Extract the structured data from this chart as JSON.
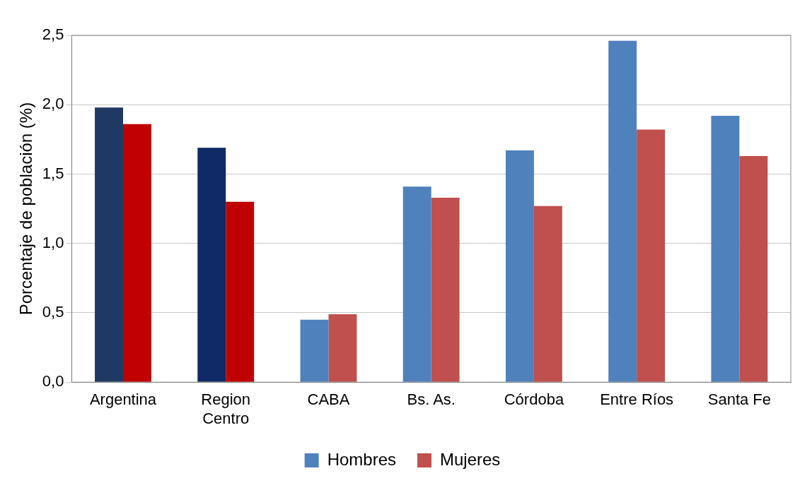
{
  "chart_data": {
    "type": "bar",
    "ylabel": "Porcentaje de población (%)",
    "categories": [
      "Argentina",
      "Region Centro",
      "CABA",
      "Bs. As.",
      "Córdoba",
      "Entre Ríos",
      "Santa Fe"
    ],
    "series": [
      {
        "name": "Hombres",
        "color": "#4f81bd",
        "colors": [
          "#1f3864",
          "#0f2a66",
          "#4f81bd",
          "#4f81bd",
          "#4f81bd",
          "#4f81bd",
          "#4f81bd"
        ],
        "values": [
          1.98,
          1.69,
          0.45,
          1.41,
          1.67,
          2.46,
          1.92
        ]
      },
      {
        "name": "Mujeres",
        "color": "#c0504d",
        "colors": [
          "#c00000",
          "#c00000",
          "#c0504d",
          "#c0504d",
          "#c0504d",
          "#c0504d",
          "#c0504d"
        ],
        "values": [
          1.86,
          1.3,
          0.49,
          1.33,
          1.27,
          1.82,
          1.63
        ]
      }
    ],
    "ylim": [
      0,
      2.5
    ],
    "yticks": [
      {
        "value": 0,
        "label": "0,0"
      },
      {
        "value": 0.5,
        "label": "0,5"
      },
      {
        "value": 1,
        "label": "1,0"
      },
      {
        "value": 1.5,
        "label": "1,5"
      },
      {
        "value": 2,
        "label": "2,0"
      },
      {
        "value": 2.5,
        "label": "2,5"
      }
    ],
    "grid": "y",
    "legend": "bottom"
  }
}
